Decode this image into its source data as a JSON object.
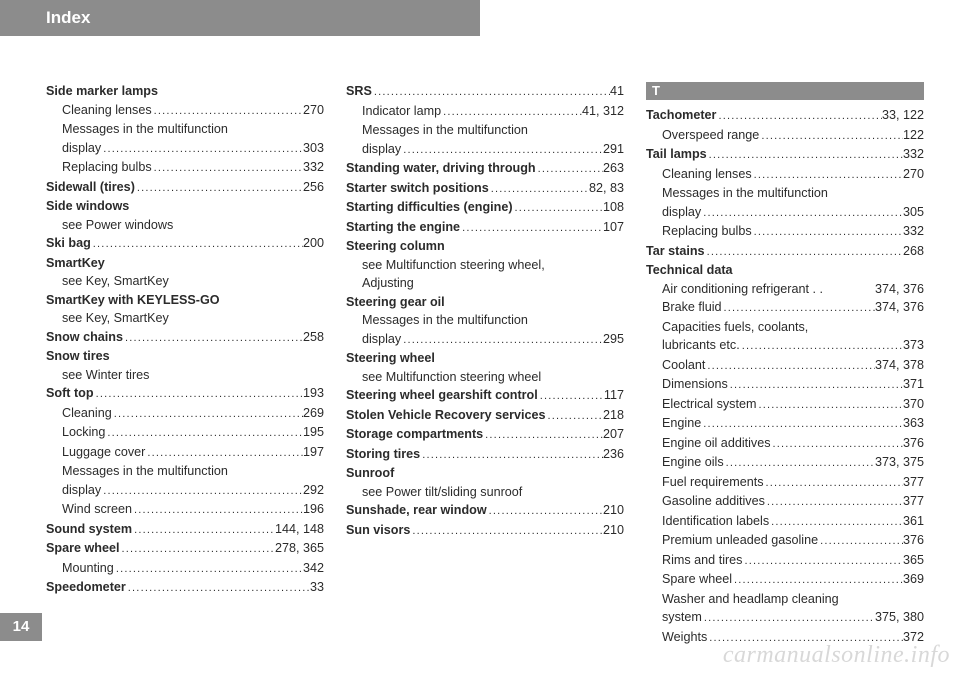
{
  "header": "Index",
  "pageNumber": "14",
  "watermark": "carmanualsonline.info",
  "sectionLetter": "T",
  "col1": [
    {
      "t": "bold",
      "label": "Side marker lamps"
    },
    {
      "t": "sub",
      "label": "Cleaning lenses",
      "page": "270"
    },
    {
      "t": "sub-wrap",
      "line1": "Messages in the multifunction",
      "line2": "display",
      "page": "303"
    },
    {
      "t": "sub",
      "label": "Replacing bulbs",
      "page": "332"
    },
    {
      "t": "boldp",
      "label": "Sidewall (tires)",
      "page": "256"
    },
    {
      "t": "bold",
      "label": "Side windows"
    },
    {
      "t": "see",
      "label": "see Power windows"
    },
    {
      "t": "boldp",
      "label": "Ski bag",
      "page": "200"
    },
    {
      "t": "bold",
      "label": "SmartKey"
    },
    {
      "t": "see",
      "label": "see Key, SmartKey"
    },
    {
      "t": "bold",
      "label": "SmartKey with KEYLESS-GO"
    },
    {
      "t": "see",
      "label": "see Key, SmartKey"
    },
    {
      "t": "boldp",
      "label": "Snow chains",
      "page": "258"
    },
    {
      "t": "bold",
      "label": "Snow tires"
    },
    {
      "t": "see",
      "label": "see Winter tires"
    },
    {
      "t": "boldp",
      "label": "Soft top",
      "page": "193"
    },
    {
      "t": "sub",
      "label": "Cleaning",
      "page": "269"
    },
    {
      "t": "sub",
      "label": "Locking",
      "page": "195"
    },
    {
      "t": "sub",
      "label": "Luggage cover",
      "page": "197"
    },
    {
      "t": "sub-wrap",
      "line1": "Messages in the multifunction",
      "line2": "display",
      "page": "292"
    },
    {
      "t": "sub",
      "label": "Wind screen",
      "page": "196"
    },
    {
      "t": "boldp",
      "label": "Sound system",
      "page": "144, 148"
    },
    {
      "t": "boldp",
      "label": "Spare wheel",
      "page": "278, 365"
    },
    {
      "t": "sub",
      "label": "Mounting",
      "page": "342"
    },
    {
      "t": "boldp",
      "label": "Speedometer",
      "page": "33"
    }
  ],
  "col2": [
    {
      "t": "boldp",
      "label": "SRS",
      "page": "41"
    },
    {
      "t": "sub",
      "label": "Indicator lamp",
      "page": "41, 312"
    },
    {
      "t": "sub-wrap",
      "line1": "Messages in the multifunction",
      "line2": "display",
      "page": "291"
    },
    {
      "t": "boldp",
      "label": "Standing water, driving through",
      "page": "263"
    },
    {
      "t": "boldp",
      "label": "Starter switch positions",
      "page": "82, 83"
    },
    {
      "t": "boldp",
      "label": "Starting difficulties (engine)",
      "page": "108"
    },
    {
      "t": "boldp",
      "label": "Starting the engine",
      "page": "107"
    },
    {
      "t": "bold",
      "label": "Steering column"
    },
    {
      "t": "see2",
      "line1": "see Multifunction steering wheel,",
      "line2": "Adjusting"
    },
    {
      "t": "bold",
      "label": "Steering gear oil"
    },
    {
      "t": "sub-wrap",
      "line1": "Messages in the multifunction",
      "line2": "display",
      "page": "295"
    },
    {
      "t": "bold",
      "label": "Steering wheel"
    },
    {
      "t": "see",
      "label": "see Multifunction steering wheel"
    },
    {
      "t": "boldp",
      "label": "Steering wheel gearshift control",
      "page": "117"
    },
    {
      "t": "boldp",
      "label": "Stolen Vehicle Recovery services",
      "page": "218"
    },
    {
      "t": "boldp",
      "label": "Storage compartments",
      "page": "207"
    },
    {
      "t": "boldp",
      "label": "Storing tires",
      "page": "236"
    },
    {
      "t": "bold",
      "label": "Sunroof"
    },
    {
      "t": "see",
      "label": "see Power tilt/sliding sunroof"
    },
    {
      "t": "boldp",
      "label": "Sunshade, rear window",
      "page": "210"
    },
    {
      "t": "boldp",
      "label": "Sun visors",
      "page": "210"
    }
  ],
  "col3": [
    {
      "t": "boldp",
      "label": "Tachometer",
      "page": "33, 122"
    },
    {
      "t": "sub",
      "label": "Overspeed range",
      "page": "122"
    },
    {
      "t": "boldp",
      "label": "Tail lamps",
      "page": "332"
    },
    {
      "t": "sub",
      "label": "Cleaning lenses",
      "page": "270"
    },
    {
      "t": "sub-wrap",
      "line1": "Messages in the multifunction",
      "line2": "display",
      "page": "305"
    },
    {
      "t": "sub",
      "label": "Replacing bulbs",
      "page": "332"
    },
    {
      "t": "boldp",
      "label": "Tar stains",
      "page": "268"
    },
    {
      "t": "bold",
      "label": "Technical data"
    },
    {
      "t": "sub",
      "label": "Air conditioning refrigerant . .",
      "page": "374, 376",
      "nodots": true
    },
    {
      "t": "sub",
      "label": "Brake fluid",
      "page": "374, 376"
    },
    {
      "t": "sub-wrap",
      "line1": "Capacities fuels, coolants,",
      "line2": "lubricants etc.",
      "page": "373"
    },
    {
      "t": "sub",
      "label": "Coolant",
      "page": "374, 378"
    },
    {
      "t": "sub",
      "label": "Dimensions",
      "page": "371"
    },
    {
      "t": "sub",
      "label": "Electrical system",
      "page": "370"
    },
    {
      "t": "sub",
      "label": "Engine",
      "page": "363"
    },
    {
      "t": "sub",
      "label": "Engine oil additives",
      "page": "376"
    },
    {
      "t": "sub",
      "label": "Engine oils",
      "page": "373, 375"
    },
    {
      "t": "sub",
      "label": "Fuel requirements",
      "page": "377"
    },
    {
      "t": "sub",
      "label": "Gasoline additives",
      "page": "377"
    },
    {
      "t": "sub",
      "label": "Identification labels",
      "page": "361"
    },
    {
      "t": "sub",
      "label": "Premium unleaded gasoline",
      "page": "376"
    },
    {
      "t": "sub",
      "label": "Rims and tires",
      "page": "365"
    },
    {
      "t": "sub",
      "label": "Spare wheel",
      "page": "369"
    },
    {
      "t": "sub-wrap",
      "line1": "Washer and headlamp cleaning",
      "line2": "system",
      "page": "375, 380"
    },
    {
      "t": "sub",
      "label": "Weights",
      "page": "372"
    }
  ]
}
